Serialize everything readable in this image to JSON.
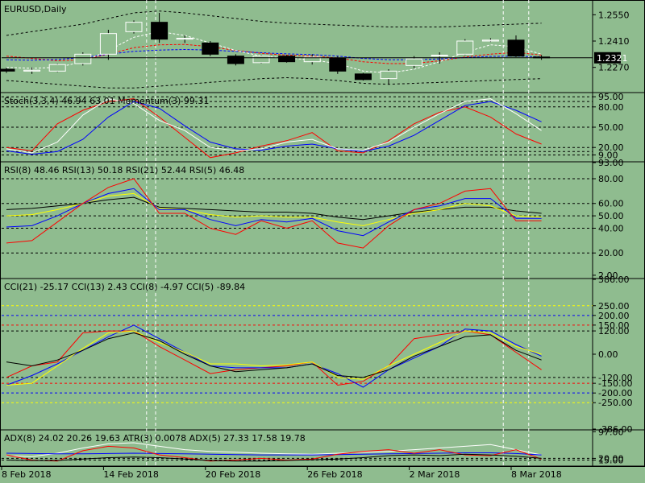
{
  "chart_data": {
    "type": "candlestick",
    "symbol_title": "EURUSD,Daily",
    "current_price": "1.2321",
    "x_labels": [
      {
        "idx": 0,
        "text": "8 Feb 2018"
      },
      {
        "idx": 4,
        "text": "14 Feb 2018"
      },
      {
        "idx": 8,
        "text": "20 Feb 2018"
      },
      {
        "idx": 12,
        "text": "26 Feb 2018"
      },
      {
        "idx": 16,
        "text": "2 Mar 2018"
      },
      {
        "idx": 20,
        "text": "8 Mar 2018"
      }
    ],
    "price_axis": {
      "min": 1.214,
      "max": 1.262,
      "ticks": [
        "1.2550",
        "1.2410",
        "1.2270"
      ]
    },
    "candles": [
      {
        "o": 1.226,
        "h": 1.2268,
        "l": 1.224,
        "c": 1.225
      },
      {
        "o": 1.225,
        "h": 1.227,
        "l": 1.2235,
        "c": 1.2255
      },
      {
        "o": 1.225,
        "h": 1.229,
        "l": 1.2245,
        "c": 1.2285
      },
      {
        "o": 1.229,
        "h": 1.235,
        "l": 1.228,
        "c": 1.234
      },
      {
        "o": 1.234,
        "h": 1.247,
        "l": 1.231,
        "c": 1.245
      },
      {
        "o": 1.246,
        "h": 1.252,
        "l": 1.245,
        "c": 1.251
      },
      {
        "o": 1.251,
        "h": 1.256,
        "l": 1.24,
        "c": 1.242
      },
      {
        "o": 1.242,
        "h": 1.244,
        "l": 1.24,
        "c": 1.2425
      },
      {
        "o": 1.24,
        "h": 1.241,
        "l": 1.233,
        "c": 1.234
      },
      {
        "o": 1.233,
        "h": 1.234,
        "l": 1.228,
        "c": 1.229
      },
      {
        "o": 1.2295,
        "h": 1.2335,
        "l": 1.229,
        "c": 1.233
      },
      {
        "o": 1.233,
        "h": 1.2335,
        "l": 1.2295,
        "c": 1.23
      },
      {
        "o": 1.23,
        "h": 1.234,
        "l": 1.2285,
        "c": 1.2325
      },
      {
        "o": 1.232,
        "h": 1.233,
        "l": 1.2235,
        "c": 1.225
      },
      {
        "o": 1.2235,
        "h": 1.224,
        "l": 1.22,
        "c": 1.2205
      },
      {
        "o": 1.221,
        "h": 1.226,
        "l": 1.218,
        "c": 1.225
      },
      {
        "o": 1.228,
        "h": 1.233,
        "l": 1.2265,
        "c": 1.2315
      },
      {
        "o": 1.233,
        "h": 1.235,
        "l": 1.229,
        "c": 1.2335
      },
      {
        "o": 1.234,
        "h": 1.242,
        "l": 1.2335,
        "c": 1.241
      },
      {
        "o": 1.241,
        "h": 1.2425,
        "l": 1.2405,
        "c": 1.2415
      },
      {
        "o": 1.2415,
        "h": 1.244,
        "l": 1.2325,
        "c": 1.233
      },
      {
        "o": 1.2325,
        "h": 1.2335,
        "l": 1.231,
        "c": 1.2321
      }
    ],
    "ma_red": [
      1.233,
      1.2318,
      1.2305,
      1.231,
      1.234,
      1.2375,
      1.239,
      1.2392,
      1.238,
      1.236,
      1.2345,
      1.2335,
      1.233,
      1.232,
      1.23,
      1.229,
      1.229,
      1.2305,
      1.2325,
      1.234,
      1.235,
      1.2335
    ],
    "ma_blue": [
      1.231,
      1.2308,
      1.2312,
      1.2322,
      1.234,
      1.2355,
      1.2362,
      1.2365,
      1.2362,
      1.2355,
      1.2348,
      1.2342,
      1.2338,
      1.233,
      1.2318,
      1.231,
      1.231,
      1.2315,
      1.2322,
      1.2328,
      1.233,
      1.2325
    ],
    "ma_white": [
      1.227,
      1.2265,
      1.227,
      1.23,
      1.236,
      1.243,
      1.246,
      1.244,
      1.24,
      1.236,
      1.233,
      1.232,
      1.231,
      1.229,
      1.225,
      1.224,
      1.226,
      1.23,
      1.235,
      1.239,
      1.238,
      1.234
    ],
    "band_upper": [
      1.244,
      1.246,
      1.248,
      1.25,
      1.253,
      1.256,
      1.257,
      1.256,
      1.2545,
      1.253,
      1.2515,
      1.2505,
      1.25,
      1.2495,
      1.249,
      1.2485,
      1.2485,
      1.2485,
      1.249,
      1.2495,
      1.25,
      1.2505
    ],
    "band_lower": [
      1.22,
      1.219,
      1.218,
      1.217,
      1.216,
      1.216,
      1.217,
      1.218,
      1.219,
      1.22,
      1.221,
      1.2215,
      1.221,
      1.22,
      1.2185,
      1.218,
      1.2185,
      1.219,
      1.2195,
      1.22,
      1.2205,
      1.221
    ],
    "v_lines_idx": [
      5.5,
      19.5,
      20.5
    ],
    "subpanels": [
      {
        "title": "Stoch(3,3,4) 46.94 63.01 Momentum(3) 99.31",
        "min": 0,
        "max": 100,
        "ticks": [
          "95.00",
          "80.00",
          "50.00",
          "20.00",
          "9.00"
        ],
        "tick_values": [
          95,
          80,
          50,
          20,
          9
        ],
        "levels": [
          95,
          88,
          80,
          50,
          20,
          14,
          9
        ],
        "series": [
          {
            "color": "#ff0000",
            "values": [
              20,
              15,
              55,
              75,
              88,
              92,
              65,
              35,
              5,
              12,
              22,
              30,
              42,
              15,
              12,
              30,
              55,
              72,
              80,
              65,
              40,
              25
            ]
          },
          {
            "color": "#0000ff",
            "values": [
              15,
              10,
              14,
              32,
              65,
              88,
              78,
              52,
              28,
              18,
              16,
              22,
              25,
              18,
              14,
              22,
              38,
              60,
              82,
              88,
              75,
              58
            ]
          },
          {
            "color": "#ffffff",
            "values": [
              18,
              12,
              28,
              68,
              92,
              85,
              60,
              45,
              20,
              15,
              18,
              28,
              32,
              18,
              16,
              28,
              50,
              70,
              88,
              92,
              70,
              45
            ]
          }
        ]
      },
      {
        "title": "RSI(8) 48.46 RSI(13) 50.18 RSI(21) 52.44 RSI(5) 46.48",
        "min": 0,
        "max": 93,
        "ticks": [
          "93.00",
          "80.00",
          "60.00",
          "50.00",
          "40.00",
          "20.00",
          "2.00"
        ],
        "tick_values": [
          93,
          80,
          60,
          50,
          40,
          20,
          2
        ],
        "levels": [
          80,
          60,
          50,
          40,
          20
        ],
        "series": [
          {
            "color": "#000000",
            "values": [
              55,
              56,
              58,
              60,
              63,
              65,
              57,
              56,
              55,
              54,
              53,
              53,
              52,
              49,
              47,
              50,
              53,
              55,
              57,
              57,
              54,
              52
            ]
          },
          {
            "color": "#ffff00",
            "values": [
              50,
              51,
              55,
              60,
              66,
              68,
              56,
              55,
              51,
              49,
              50,
              49,
              49,
              45,
              42,
              47,
              52,
              55,
              60,
              58,
              50,
              49
            ]
          },
          {
            "color": "#0000ff",
            "values": [
              41,
              42,
              50,
              60,
              68,
              72,
              55,
              55,
              47,
              42,
              47,
              45,
              48,
              38,
              34,
              45,
              55,
              58,
              64,
              64,
              48,
              48
            ]
          },
          {
            "color": "#ff0000",
            "values": [
              28,
              30,
              45,
              60,
              73,
              80,
              52,
              52,
              40,
              35,
              46,
              40,
              46,
              28,
              24,
              42,
              55,
              60,
              70,
              72,
              46,
              46
            ]
          }
        ]
      },
      {
        "title": "CCI(21) -25.17 CCI(13) 2.43 CCI(8) -4.97 CCI(5) -89.84",
        "min": -386,
        "max": 386,
        "ticks": [
          "386.00",
          "250.00",
          "200.00",
          "150.00",
          "120.00",
          "0.00",
          "-120.00",
          "-150.00",
          "-200.00",
          "-250.00",
          "-386.00"
        ],
        "tick_values": [
          386,
          250,
          200,
          150,
          120,
          0,
          -120,
          -150,
          -200,
          -250,
          -386
        ],
        "levels": [
          250,
          200,
          150,
          120,
          -120,
          -150,
          -200,
          -250
        ],
        "level_colors": {
          "250": "#ffff00",
          "200": "#0000ff",
          "150": "#ff0000",
          "120": "#000000",
          "-120": "#000000",
          "-150": "#ff0000",
          "-200": "#0000ff",
          "-250": "#ffff00"
        },
        "series": [
          {
            "color": "#ff0000",
            "values": [
              -120,
              -60,
              -40,
              110,
              120,
              120,
              40,
              -30,
              -100,
              -80,
              -70,
              -60,
              -40,
              -160,
              -140,
              -60,
              80,
              100,
              120,
              100,
              10,
              -80
            ]
          },
          {
            "color": "#0000ff",
            "values": [
              -160,
              -110,
              -50,
              20,
              90,
              150,
              80,
              10,
              -60,
              -70,
              -70,
              -70,
              -50,
              -100,
              -170,
              -80,
              -20,
              40,
              130,
              120,
              50,
              -10
            ]
          },
          {
            "color": "#ffff00",
            "values": [
              -160,
              -150,
              -60,
              30,
              110,
              120,
              60,
              10,
              -50,
              -50,
              -60,
              -55,
              -40,
              -120,
              -130,
              -60,
              0,
              60,
              120,
              110,
              40,
              0
            ]
          },
          {
            "color": "#000000",
            "values": [
              -40,
              -60,
              -30,
              20,
              80,
              110,
              70,
              0,
              -60,
              -90,
              -80,
              -70,
              -50,
              -110,
              -120,
              -80,
              -10,
              40,
              90,
              100,
              20,
              -30
            ]
          }
        ]
      },
      {
        "title": "ADX(8) 24.02 20.26 19.63 ATR(3) 0.0078 ADX(5) 27.33 17.58 19.78",
        "min": 0,
        "max": 100,
        "ticks": [
          "97.00",
          "20.00",
          "15.00"
        ],
        "tick_values": [
          97,
          20,
          15
        ],
        "levels": [
          20,
          15
        ],
        "series": [
          {
            "color": "#ffffff",
            "values": [
              28,
              25,
              35,
              50,
              62,
              65,
              55,
              45,
              40,
              38,
              35,
              33,
              32,
              35,
              38,
              40,
              45,
              50,
              55,
              60,
              45,
              30
            ]
          },
          {
            "color": "#0000ff",
            "values": [
              35,
              34,
              33,
              33,
              34,
              35,
              34,
              33,
              32,
              31,
              30,
              30,
              30,
              31,
              32,
              33,
              34,
              35,
              36,
              36,
              34,
              30
            ]
          },
          {
            "color": "#ff0000",
            "values": [
              30,
              15,
              12,
              42,
              55,
              50,
              30,
              22,
              12,
              15,
              20,
              15,
              18,
              32,
              40,
              45,
              35,
              45,
              30,
              28,
              45,
              18
            ]
          },
          {
            "color": "#000000",
            "values": [
              15,
              14,
              14,
              18,
              22,
              24,
              22,
              18,
              14,
              12,
              12,
              14,
              16,
              18,
              22,
              28,
              30,
              28,
              32,
              30,
              26,
              20
            ]
          }
        ]
      }
    ]
  }
}
